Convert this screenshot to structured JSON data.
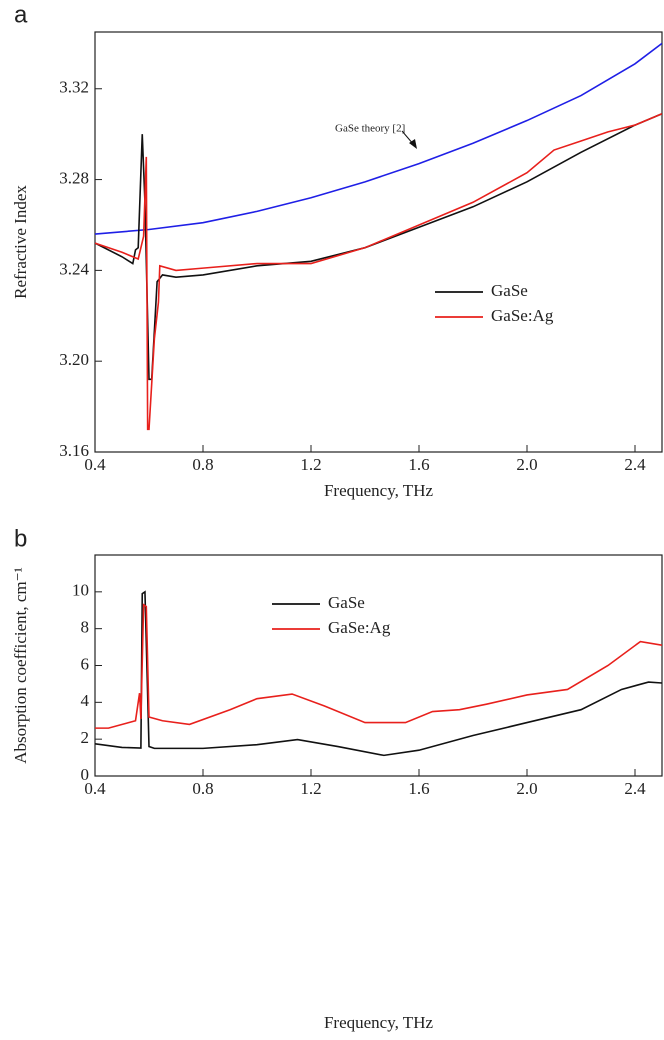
{
  "chart_data": [
    {
      "type": "line",
      "label": "a",
      "xlabel": "Frequency, THz",
      "ylabel": "Refractive Index",
      "annotation": "GaSe theory [2]",
      "legend": "center right",
      "xlim": [
        0.4,
        2.5
      ],
      "ylim": [
        3.16,
        3.345
      ],
      "xticks": [
        0.4,
        0.8,
        1.2,
        1.6,
        {
          "value": 2,
          "label": "2.0"
        },
        2.4
      ],
      "yticks": [
        3.16,
        {
          "value": 3.2,
          "label": "3.20"
        },
        3.24,
        3.28,
        3.32
      ],
      "series": [
        {
          "color": "#1f1fe6",
          "x": [
            0.4,
            0.6,
            0.8,
            1.0,
            1.2,
            1.4,
            1.6,
            1.8,
            2.0,
            2.2,
            2.4,
            2.5
          ],
          "values": [
            3.256,
            3.258,
            3.261,
            3.266,
            3.272,
            3.279,
            3.287,
            3.296,
            3.306,
            3.317,
            3.331,
            3.34
          ]
        },
        {
          "name": "GaSe",
          "color": "#111111",
          "x": [
            0.4,
            0.5,
            0.54,
            0.55,
            0.56,
            0.575,
            0.585,
            0.6,
            0.61,
            0.63,
            0.65,
            0.7,
            0.8,
            1.0,
            1.2,
            1.4,
            1.6,
            1.8,
            2.0,
            2.2,
            2.4,
            2.5
          ],
          "values": [
            3.252,
            3.246,
            3.243,
            3.249,
            3.25,
            3.3,
            3.27,
            3.192,
            3.192,
            3.235,
            3.238,
            3.237,
            3.238,
            3.242,
            3.244,
            3.25,
            3.259,
            3.268,
            3.279,
            3.292,
            3.304,
            3.309
          ]
        },
        {
          "name": "GaSe:Ag",
          "color": "#e8201c",
          "x": [
            0.4,
            0.5,
            0.56,
            0.58,
            0.59,
            0.595,
            0.6,
            0.62,
            0.635,
            0.64,
            0.7,
            0.8,
            1.0,
            1.2,
            1.4,
            1.6,
            1.8,
            2.0,
            2.1,
            2.2,
            2.3,
            2.4,
            2.5
          ],
          "values": [
            3.252,
            3.248,
            3.245,
            3.255,
            3.29,
            3.17,
            3.17,
            3.21,
            3.226,
            3.242,
            3.24,
            3.241,
            3.243,
            3.243,
            3.25,
            3.26,
            3.27,
            3.283,
            3.293,
            3.297,
            3.301,
            3.304,
            3.309
          ]
        }
      ]
    },
    {
      "type": "line",
      "label": "b",
      "xlabel": "Frequency, THz",
      "ylabel": "Absorption coefficient, cm⁻¹",
      "legend": "upper center",
      "xlim": [
        0.4,
        2.5
      ],
      "ylim": [
        0,
        12
      ],
      "xticks": [
        0.4,
        0.8,
        1.2,
        1.6,
        {
          "value": 2,
          "label": "2.0"
        },
        2.4
      ],
      "yticks": [
        0,
        2,
        4,
        6,
        8,
        10
      ],
      "series": [
        {
          "name": "GaSe",
          "color": "#111111",
          "x": [
            0.4,
            0.5,
            0.57,
            0.575,
            0.585,
            0.6,
            0.62,
            0.8,
            1.0,
            1.15,
            1.3,
            1.47,
            1.6,
            1.8,
            2.0,
            2.2,
            2.35,
            2.45,
            2.5
          ],
          "values": [
            1.75,
            1.55,
            1.52,
            9.9,
            10.0,
            1.6,
            1.5,
            1.5,
            1.7,
            1.98,
            1.6,
            1.12,
            1.4,
            2.2,
            2.9,
            3.6,
            4.7,
            5.1,
            5.05
          ]
        },
        {
          "name": "GaSe:Ag",
          "color": "#e8201c",
          "x": [
            0.4,
            0.45,
            0.55,
            0.565,
            0.57,
            0.58,
            0.59,
            0.6,
            0.65,
            0.75,
            0.9,
            1.0,
            1.13,
            1.25,
            1.4,
            1.55,
            1.65,
            1.75,
            1.85,
            2.0,
            2.15,
            2.3,
            2.42,
            2.5
          ],
          "values": [
            2.6,
            2.6,
            3.0,
            4.5,
            3.1,
            9.3,
            9.2,
            3.2,
            3.0,
            2.8,
            3.6,
            4.2,
            4.45,
            3.8,
            2.9,
            2.9,
            3.5,
            3.6,
            3.9,
            4.4,
            4.7,
            6.0,
            7.3,
            7.1
          ]
        }
      ]
    }
  ]
}
